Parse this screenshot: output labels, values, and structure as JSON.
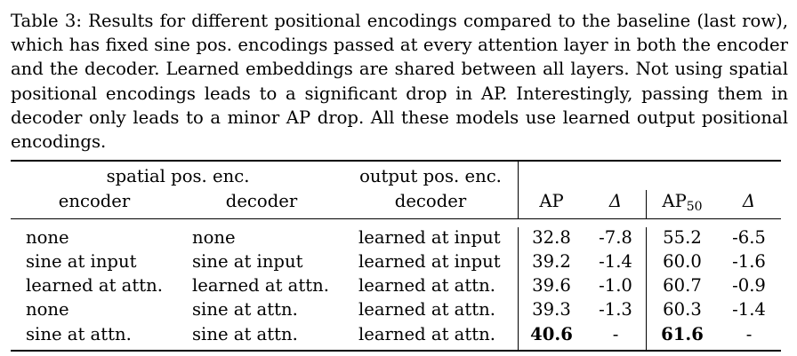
{
  "caption": {
    "lines": [
      "Table 3: Results for different positional encodings compared to the baseline (last row),",
      "which has fixed sine pos. encodings passed at every attention layer in both the encoder",
      "and the decoder. Learned embeddings are shared between all layers. Not using spatial",
      "positional encodings leads to a significant drop in AP. Interestingly, passing them in",
      "decoder only leads to a minor AP drop. All these models use learned output positional",
      "encodings."
    ]
  },
  "table": {
    "group_headers": {
      "spatial": "spatial pos. enc.",
      "output": "output pos. enc."
    },
    "headers": {
      "encoder": "encoder",
      "decoder": "decoder",
      "output_decoder": "decoder",
      "ap": "AP",
      "delta1": "Δ",
      "ap50_main": "AP",
      "ap50_sub": "50",
      "delta2": "Δ"
    },
    "rows": [
      {
        "encoder": "none",
        "decoder": "none",
        "output": "learned at input",
        "ap": "32.8",
        "d1": "-7.8",
        "ap50": "55.2",
        "d2": "-6.5"
      },
      {
        "encoder": "sine at input",
        "decoder": "sine at input",
        "output": "learned at input",
        "ap": "39.2",
        "d1": "-1.4",
        "ap50": "60.0",
        "d2": "-1.6"
      },
      {
        "encoder": "learned at attn.",
        "decoder": "learned at attn.",
        "output": "learned at attn.",
        "ap": "39.6",
        "d1": "-1.0",
        "ap50": "60.7",
        "d2": "-0.9"
      },
      {
        "encoder": "none",
        "decoder": "sine at attn.",
        "output": "learned at attn.",
        "ap": "39.3",
        "d1": "-1.3",
        "ap50": "60.3",
        "d2": "-1.4"
      },
      {
        "encoder": "sine at attn.",
        "decoder": "sine at attn.",
        "output": "learned at attn.",
        "ap": "40.6",
        "d1": "-",
        "ap50": "61.6",
        "d2": "-"
      }
    ]
  }
}
